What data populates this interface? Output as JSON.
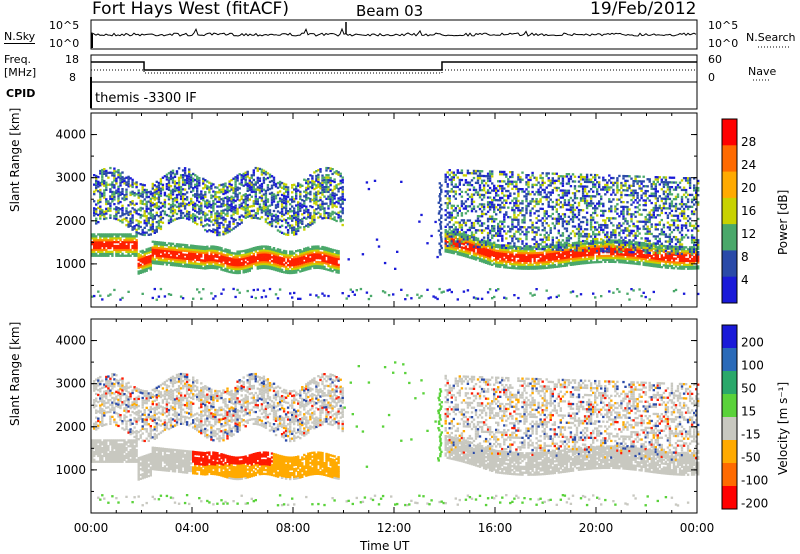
{
  "header": {
    "station": "Fort Hays West (fitACF)",
    "beam": "Beam 03",
    "date": "19/Feb/2012"
  },
  "noise_panel": {
    "left_label": "N.Sky",
    "right_label": "N.Search",
    "left_ticks": [
      "10^5",
      "10^0"
    ],
    "right_ticks": [
      "10^5",
      "10^0"
    ]
  },
  "freq_panel": {
    "left_label_1": "Freq.",
    "left_label_2": "[MHz]",
    "right_label": "Nave",
    "left_ticks": [
      "18",
      "8"
    ],
    "right_ticks": [
      "60",
      "0"
    ]
  },
  "cpid_panel": {
    "label": "CPID",
    "text": "themis -3300 IF"
  },
  "chart_data": [
    {
      "type": "heatmap",
      "name": "power",
      "ylabel": "Slant Range [km]",
      "yticks": [
        "4000",
        "3000",
        "2000",
        "1000"
      ],
      "ylim": [
        0,
        4500
      ],
      "colorbar_label": "Power [dB]",
      "colorbar_ticks": [
        "28",
        "24",
        "20",
        "16",
        "12",
        "8",
        "4"
      ],
      "colorbar_colors": [
        "#ff0000",
        "#ff6a00",
        "#ffaa00",
        "#c8d200",
        "#4aa86a",
        "#2a4aa8",
        "#1a1ad8"
      ]
    },
    {
      "type": "heatmap",
      "name": "velocity",
      "ylabel": "Slant Range [km]",
      "yticks": [
        "4000",
        "3000",
        "2000",
        "1000"
      ],
      "ylim": [
        0,
        4500
      ],
      "colorbar_label": "Velocity [m s⁻¹]",
      "colorbar_ticks": [
        "200",
        "100",
        "50",
        "15",
        "-15",
        "-50",
        "-100",
        "-200"
      ],
      "colorbar_colors": [
        "#1a1ad8",
        "#2a6ab8",
        "#2aa86a",
        "#5ad23a",
        "#c8c8c0",
        "#ffaa00",
        "#ff6a00",
        "#ff0000"
      ]
    }
  ],
  "x_axis": {
    "label": "Time UT",
    "ticks": [
      "00:00",
      "04:00",
      "08:00",
      "12:00",
      "16:00",
      "20:00",
      "00:00"
    ]
  }
}
